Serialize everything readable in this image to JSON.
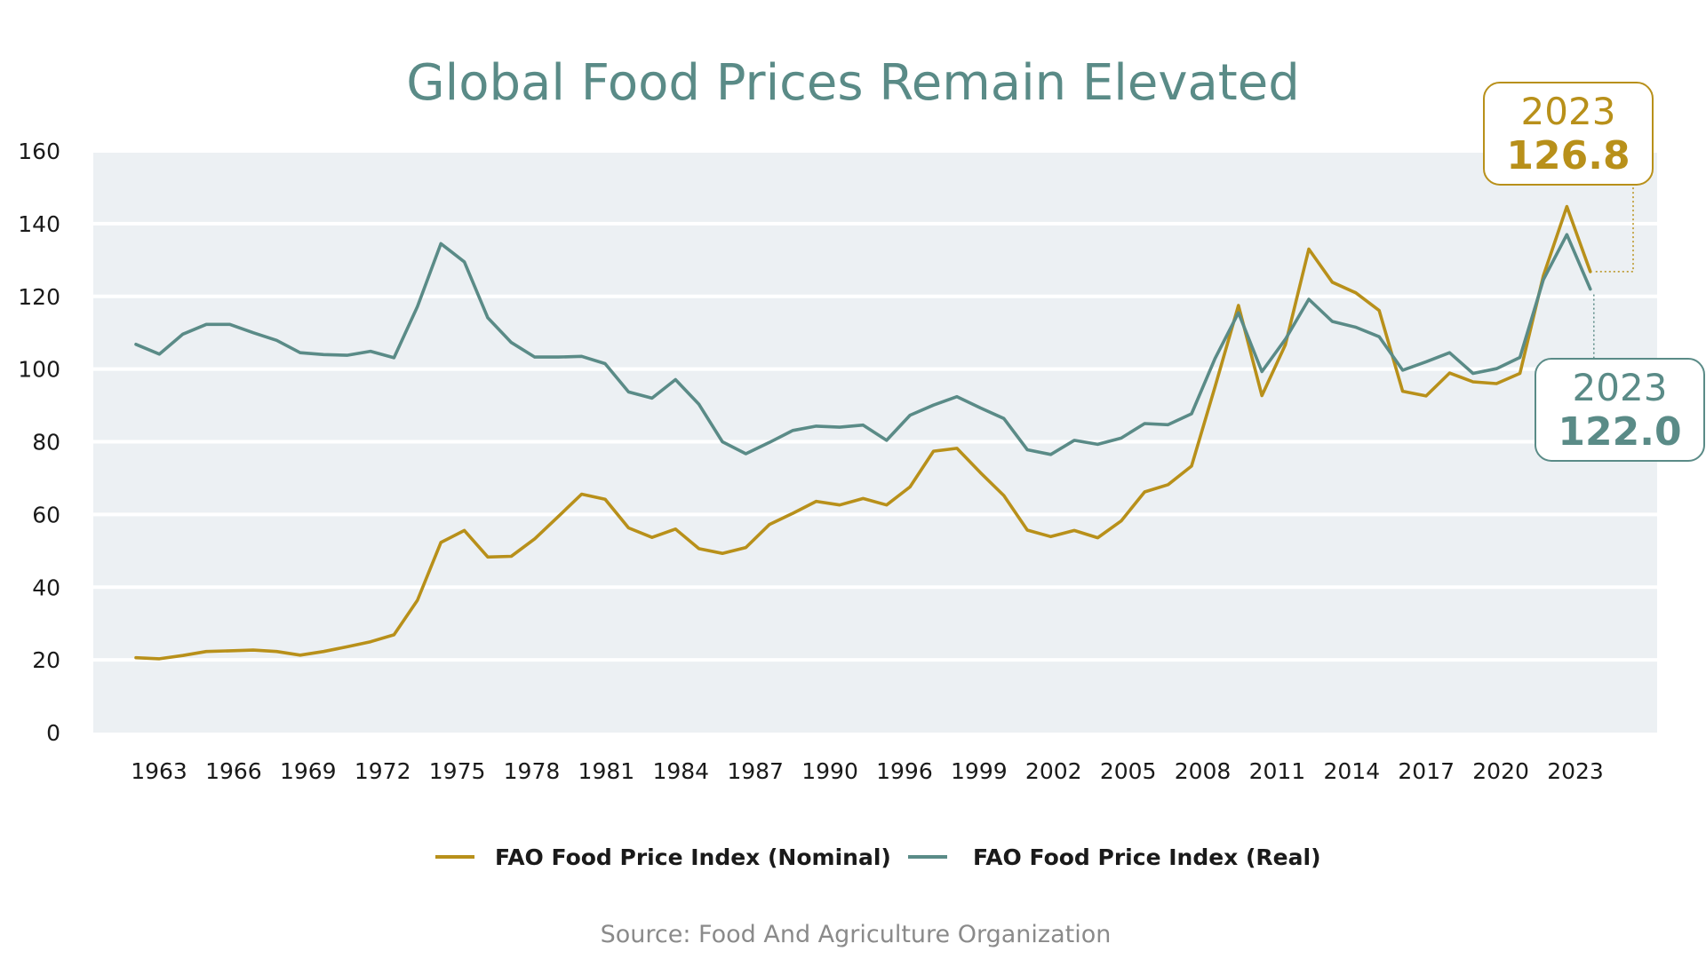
{
  "chart_data": {
    "type": "line",
    "title": "Global Food Prices Remain Elevated",
    "xlabel": "",
    "ylabel": "",
    "ylim": [
      0,
      160
    ],
    "y_ticks": [
      "0",
      "20",
      "40",
      "60",
      "80",
      "100",
      "120",
      "140",
      "160"
    ],
    "x_tick_labels": [
      "1963",
      "1966",
      "1969",
      "1972",
      "1975",
      "1978",
      "1981",
      "1984",
      "1987",
      "1990",
      "1996",
      "1999",
      "2002",
      "2005",
      "2008",
      "2011",
      "2014",
      "2017",
      "2020",
      "2023"
    ],
    "grid": true,
    "legend_position": "bottom",
    "colors": {
      "nominal": "#b8901a",
      "real": "#5a8b87",
      "plot_bg": "#ecf0f3"
    },
    "series": [
      {
        "name": "FAO Food Price Index (Nominal)",
        "values": [
          20.6,
          20.3,
          21.2,
          22.3,
          22.5,
          22.7,
          22.3,
          21.3,
          22.3,
          23.6,
          25.0,
          26.9,
          36.4,
          52.3,
          55.6,
          48.3,
          48.5,
          53.3,
          59.4,
          65.6,
          64.2,
          56.3,
          53.7,
          56.0,
          50.6,
          49.3,
          50.9,
          57.2,
          60.3,
          63.6,
          62.6,
          64.4,
          62.6,
          67.6,
          77.4,
          78.2,
          71.5,
          65.2,
          55.7,
          53.9,
          55.6,
          53.6,
          58.2,
          66.2,
          68.2,
          73.3,
          95.1,
          117.5,
          92.7,
          106.7,
          133.0,
          123.9,
          121.0,
          116.1,
          93.9,
          92.6,
          98.9,
          96.5,
          96.0,
          98.8,
          125.7,
          144.7,
          126.8
        ]
      },
      {
        "name": "FAO Food Price Index (Real)",
        "values": [
          106.8,
          104.1,
          109.6,
          112.3,
          112.3,
          110.0,
          107.9,
          104.5,
          104.0,
          103.8,
          104.9,
          103.1,
          117.2,
          134.5,
          129.5,
          114.1,
          107.3,
          103.3,
          103.3,
          103.5,
          101.5,
          93.7,
          92.0,
          97.1,
          90.3,
          80.0,
          76.7,
          79.8,
          83.1,
          84.3,
          84.0,
          84.6,
          80.4,
          87.3,
          90.1,
          92.4,
          89.3,
          86.4,
          77.8,
          76.5,
          80.4,
          79.3,
          81.0,
          85.0,
          84.7,
          87.7,
          102.9,
          115.5,
          99.3,
          108.2,
          119.2,
          113.1,
          111.5,
          108.9,
          99.7,
          102.0,
          104.5,
          98.8,
          100.1,
          103.2,
          124.6,
          137.0,
          122.0
        ]
      }
    ],
    "callouts": [
      {
        "year": "2023",
        "value": "126.8"
      },
      {
        "year": "2023",
        "value": "122.0"
      }
    ],
    "source": "Source: Food And Agriculture Organization"
  }
}
